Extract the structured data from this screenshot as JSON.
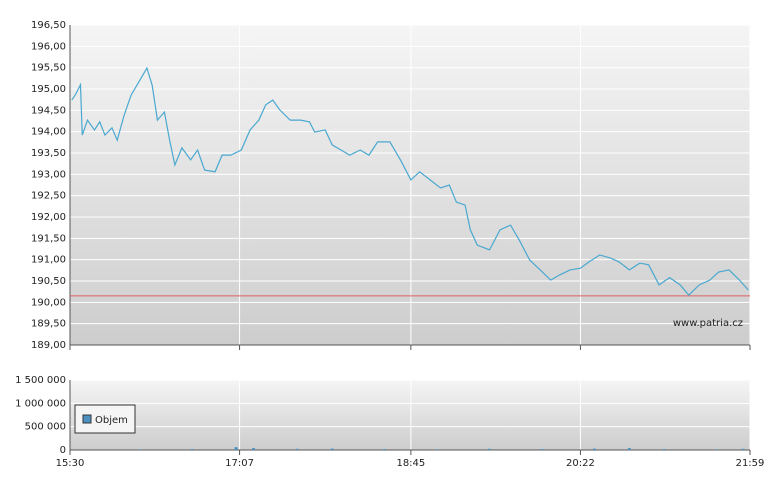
{
  "watermark": "www.patria.cz",
  "chart_data": [
    {
      "type": "line",
      "color": "#4aa8d0",
      "x": [
        "15:31",
        "15:33",
        "15:36",
        "15:37",
        "15:40",
        "15:44",
        "15:47",
        "15:50",
        "15:54",
        "15:57",
        "16:01",
        "16:05",
        "16:10",
        "16:14",
        "16:17",
        "16:20",
        "16:24",
        "16:27",
        "16:30",
        "16:34",
        "16:39",
        "16:43",
        "16:47",
        "16:53",
        "16:57",
        "17:02",
        "17:08",
        "17:13",
        "17:18",
        "17:22",
        "17:26",
        "17:30",
        "17:36",
        "17:42",
        "17:47",
        "17:50",
        "17:56",
        "18:00",
        "18:05",
        "18:10",
        "18:16",
        "18:21",
        "18:26",
        "18:33",
        "18:39",
        "18:45",
        "18:50",
        "18:56",
        "19:02",
        "19:07",
        "19:11",
        "19:16",
        "19:19",
        "19:23",
        "19:30",
        "19:36",
        "19:42",
        "19:47",
        "19:53",
        "19:59",
        "20:05",
        "20:10",
        "20:16",
        "20:22",
        "20:27",
        "20:33",
        "20:39",
        "20:44",
        "20:50",
        "20:56",
        "21:01",
        "21:07",
        "21:13",
        "21:19",
        "21:24",
        "21:30",
        "21:36",
        "21:41",
        "21:47",
        "21:53",
        "21:58"
      ],
      "values": [
        194.74,
        194.86,
        195.1,
        193.92,
        194.27,
        194.04,
        194.23,
        193.92,
        194.09,
        193.8,
        194.39,
        194.86,
        195.21,
        195.49,
        195.09,
        194.27,
        194.46,
        193.8,
        193.22,
        193.62,
        193.34,
        193.57,
        193.1,
        193.06,
        193.45,
        193.45,
        193.57,
        194.04,
        194.27,
        194.63,
        194.74,
        194.51,
        194.27,
        194.27,
        194.23,
        193.99,
        194.04,
        193.69,
        193.57,
        193.45,
        193.57,
        193.45,
        193.76,
        193.76,
        193.34,
        192.87,
        193.06,
        192.87,
        192.68,
        192.75,
        192.35,
        192.28,
        191.7,
        191.34,
        191.23,
        191.7,
        191.81,
        191.46,
        190.99,
        190.76,
        190.52,
        190.64,
        190.76,
        190.8,
        190.95,
        191.11,
        191.04,
        190.95,
        190.76,
        190.92,
        190.88,
        190.41,
        190.58,
        190.41,
        190.17,
        190.41,
        190.52,
        190.71,
        190.76,
        190.52,
        190.29
      ],
      "reference_line": {
        "value": 190.15,
        "color": "#e06060"
      },
      "xlim": [
        "15:30",
        "21:59"
      ],
      "ylim": [
        189,
        196.5
      ],
      "yticks": [
        {
          "value": 189,
          "label": "189,00"
        },
        {
          "value": 189.5,
          "label": "189,50"
        },
        {
          "value": 190,
          "label": "190,00"
        },
        {
          "value": 190.5,
          "label": "190,50"
        },
        {
          "value": 191,
          "label": "191,00"
        },
        {
          "value": 191.5,
          "label": "191,50"
        },
        {
          "value": 192,
          "label": "192,00"
        },
        {
          "value": 192.5,
          "label": "192,50"
        },
        {
          "value": 193,
          "label": "193,00"
        },
        {
          "value": 193.5,
          "label": "193,50"
        },
        {
          "value": 194,
          "label": "194,00"
        },
        {
          "value": 194.5,
          "label": "194,50"
        },
        {
          "value": 195,
          "label": "195,00"
        },
        {
          "value": 195.5,
          "label": "195,50"
        },
        {
          "value": 196,
          "label": "196,00"
        },
        {
          "value": 196.5,
          "label": "196,50"
        }
      ],
      "grid": true
    },
    {
      "type": "bar",
      "x": [
        "16:10",
        "16:40",
        "17:05",
        "17:15",
        "17:40",
        "18:00",
        "18:30",
        "19:00",
        "19:30",
        "20:00",
        "20:30",
        "20:50",
        "21:10",
        "21:40",
        "21:55"
      ],
      "series": [
        {
          "name": "Objem",
          "color": "#4a90c0",
          "values": [
            15000,
            20000,
            60000,
            40000,
            25000,
            30000,
            20000,
            15000,
            25000,
            20000,
            30000,
            40000,
            20000,
            15000,
            25000
          ]
        }
      ],
      "xlim": [
        "15:30",
        "21:59"
      ],
      "ylim": [
        0,
        1500000
      ],
      "xticks": [
        "15:30",
        "17:07",
        "18:45",
        "20:22",
        "21:59"
      ],
      "yticks": [
        0,
        {
          "value": 500000,
          "label": "500 000"
        },
        {
          "value": 1000000,
          "label": "1 000 000"
        },
        {
          "value": 1500000,
          "label": "1 500 000"
        }
      ],
      "grid": true,
      "legend": "upper left"
    }
  ]
}
